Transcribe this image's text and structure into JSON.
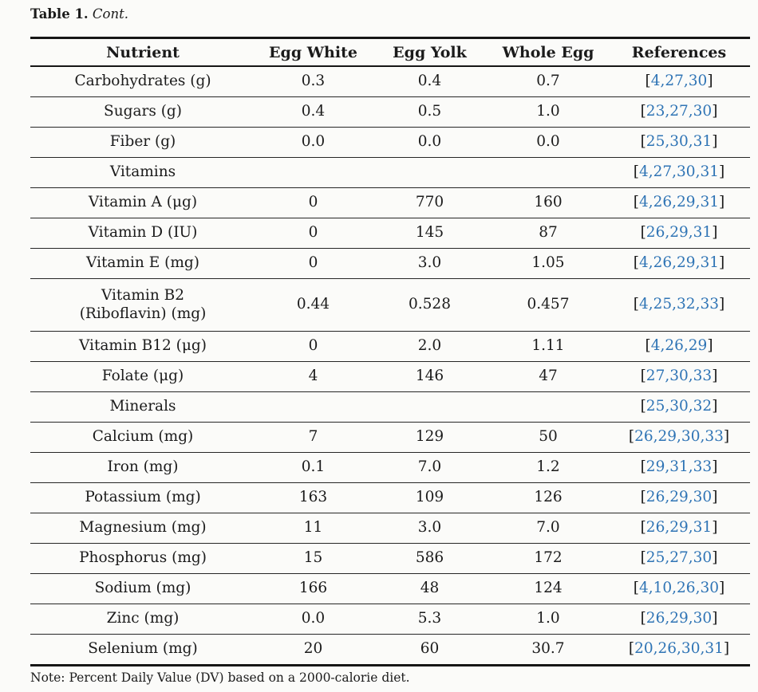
{
  "caption": {
    "label": "Table 1.",
    "cont": "Cont."
  },
  "colors": {
    "link_blue": "#2f74b5",
    "text": "#1b1b1b",
    "background": "#fbfbf9"
  },
  "table": {
    "headers": [
      "Nutrient",
      "Egg White",
      "Egg Yolk",
      "Whole Egg",
      "References"
    ],
    "rows": [
      {
        "nutrient": "Carbohydrates (g)",
        "egg_white": "0.3",
        "egg_yolk": "0.4",
        "whole_egg": "0.7",
        "refs": "4,27,30"
      },
      {
        "nutrient": "Sugars (g)",
        "egg_white": "0.4",
        "egg_yolk": "0.5",
        "whole_egg": "1.0",
        "refs": "23,27,30"
      },
      {
        "nutrient": "Fiber (g)",
        "egg_white": "0.0",
        "egg_yolk": "0.0",
        "whole_egg": "0.0",
        "refs": "25,30,31"
      },
      {
        "nutrient": "Vitamins",
        "egg_white": "",
        "egg_yolk": "",
        "whole_egg": "",
        "refs": "4,27,30,31",
        "section": true
      },
      {
        "nutrient": "Vitamin A (μg)",
        "egg_white": "0",
        "egg_yolk": "770",
        "whole_egg": "160",
        "refs": "4,26,29,31"
      },
      {
        "nutrient": "Vitamin D (IU)",
        "egg_white": "0",
        "egg_yolk": "145",
        "whole_egg": "87",
        "refs": "26,29,31"
      },
      {
        "nutrient": "Vitamin E (mg)",
        "egg_white": "0",
        "egg_yolk": "3.0",
        "whole_egg": "1.05",
        "refs": "4,26,29,31"
      },
      {
        "nutrient": "Vitamin B2",
        "nutrient_line2": "(Riboflavin) (mg)",
        "egg_white": "0.44",
        "egg_yolk": "0.528",
        "whole_egg": "0.457",
        "refs": "4,25,32,33",
        "tall": true
      },
      {
        "nutrient": "Vitamin B12 (μg)",
        "egg_white": "0",
        "egg_yolk": "2.0",
        "whole_egg": "1.11",
        "refs": "4,26,29"
      },
      {
        "nutrient": "Folate (μg)",
        "egg_white": "4",
        "egg_yolk": "146",
        "whole_egg": "47",
        "refs": "27,30,33"
      },
      {
        "nutrient": "Minerals",
        "egg_white": "",
        "egg_yolk": "",
        "whole_egg": "",
        "refs": "25,30,32",
        "section": true
      },
      {
        "nutrient": "Calcium (mg)",
        "egg_white": "7",
        "egg_yolk": "129",
        "whole_egg": "50",
        "refs": "26,29,30,33"
      },
      {
        "nutrient": "Iron (mg)",
        "egg_white": "0.1",
        "egg_yolk": "7.0",
        "whole_egg": "1.2",
        "refs": "29,31,33"
      },
      {
        "nutrient": "Potassium (mg)",
        "egg_white": "163",
        "egg_yolk": "109",
        "whole_egg": "126",
        "refs": "26,29,30"
      },
      {
        "nutrient": "Magnesium (mg)",
        "egg_white": "11",
        "egg_yolk": "3.0",
        "whole_egg": "7.0",
        "refs": "26,29,31"
      },
      {
        "nutrient": "Phosphorus (mg)",
        "egg_white": "15",
        "egg_yolk": "586",
        "whole_egg": "172",
        "refs": "25,27,30"
      },
      {
        "nutrient": "Sodium (mg)",
        "egg_white": "166",
        "egg_yolk": "48",
        "whole_egg": "124",
        "refs": "4,10,26,30"
      },
      {
        "nutrient": "Zinc (mg)",
        "egg_white": "0.0",
        "egg_yolk": "5.3",
        "whole_egg": "1.0",
        "refs": "26,29,30"
      },
      {
        "nutrient": "Selenium (mg)",
        "egg_white": "20",
        "egg_yolk": "60",
        "whole_egg": "30.7",
        "refs": "20,26,30,31"
      }
    ]
  },
  "note": "Note: Percent Daily Value (DV) based on a 2000-calorie diet."
}
